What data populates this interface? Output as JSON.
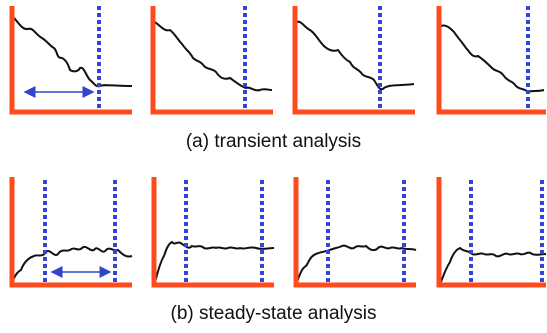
{
  "captions": {
    "transient": "(a) transient analysis",
    "steady_state": "(b) steady-state analysis"
  },
  "colors": {
    "axis": "#ff4a1c",
    "marker": "#3344dd",
    "curve": "#111111",
    "arrow": "#3344cc",
    "background": "#ffffff"
  }
}
